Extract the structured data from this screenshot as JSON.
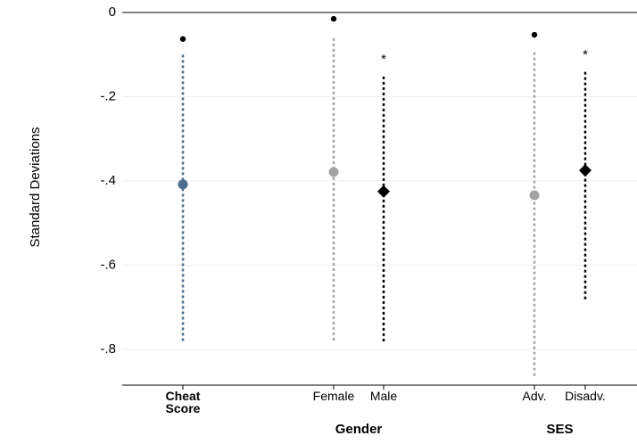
{
  "chart_data": {
    "type": "dotplot",
    "ylabel": "Standard Deviations",
    "categories": [
      "Cheat Score",
      "Female",
      "Male",
      "Adv.",
      "Disadv."
    ],
    "values": [
      -0.408,
      -0.379,
      -0.425,
      -0.434,
      -0.375
    ],
    "ci_lower": [
      -0.78,
      -0.779,
      -0.781,
      -0.863,
      -0.681
    ],
    "ci_upper": [
      -0.097,
      -0.059,
      -0.15,
      -0.091,
      -0.14
    ],
    "dot_values": [
      -0.063,
      -0.015,
      null,
      -0.053,
      null
    ],
    "markers": [
      "circle",
      "circle",
      "diamond",
      "circle",
      "diamond"
    ],
    "colors": [
      "#4d6d8e",
      "#a3a3a3",
      "#000000",
      "#a3a3a3",
      "#000000"
    ],
    "annotations": [
      null,
      null,
      "*",
      null,
      "*"
    ],
    "groups": [
      "Gender",
      "SES"
    ],
    "ylim": [
      -0.885,
      0
    ],
    "yticks": [
      0,
      {
        "value": -0.2,
        "label": "-.2"
      },
      {
        "value": -0.4,
        "label": "-.4"
      },
      {
        "value": -0.6,
        "label": "-.6"
      },
      {
        "value": -0.8,
        "label": "-.8"
      }
    ],
    "grid": true
  }
}
